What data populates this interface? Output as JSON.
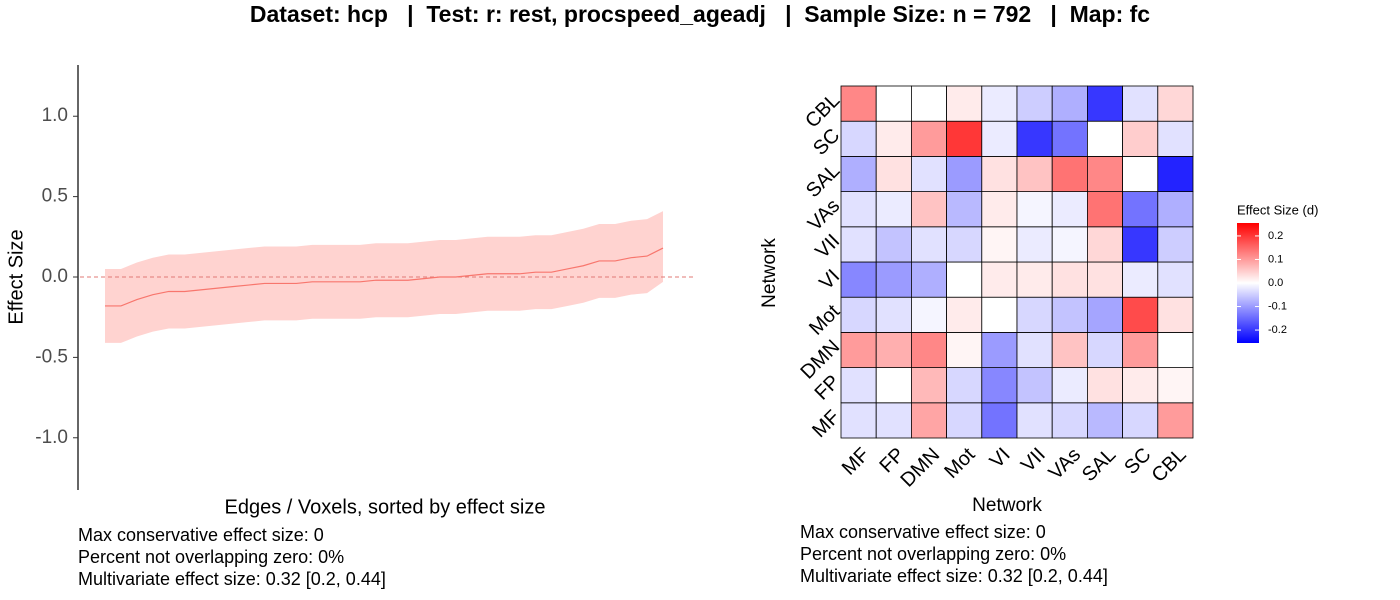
{
  "title": "Dataset: hcp   |  Test: r: rest, procspeed_ageadj   |  Sample Size: n = 792   |  Map: fc",
  "chart_data": [
    {
      "type": "ribbon-line",
      "y_label": "Effect Size",
      "x_label": "Edges / Voxels, sorted by effect size",
      "ylim": [
        -1.3,
        1.3
      ],
      "yticks": [
        {
          "value": 1.0,
          "label": "1.0"
        },
        0.5,
        {
          "value": 0.0,
          "label": "0.0"
        },
        -0.5,
        {
          "value": -1.0,
          "label": "-1.0"
        }
      ],
      "reference_line": 0,
      "line_color": "#f8766d",
      "ribbon_color": "#ffd3d0",
      "values": [
        -0.18,
        -0.18,
        -0.14,
        -0.11,
        -0.09,
        -0.09,
        -0.08,
        -0.07,
        -0.06,
        -0.05,
        -0.04,
        -0.04,
        -0.04,
        -0.03,
        -0.03,
        -0.03,
        -0.03,
        -0.02,
        -0.02,
        -0.02,
        -0.01,
        0.0,
        0.0,
        0.01,
        0.02,
        0.02,
        0.02,
        0.03,
        0.03,
        0.05,
        0.07,
        0.1,
        0.1,
        0.12,
        0.13,
        0.18
      ],
      "lower": [
        -0.41,
        -0.41,
        -0.37,
        -0.34,
        -0.32,
        -0.32,
        -0.31,
        -0.3,
        -0.29,
        -0.28,
        -0.27,
        -0.27,
        -0.27,
        -0.26,
        -0.26,
        -0.26,
        -0.26,
        -0.25,
        -0.25,
        -0.25,
        -0.24,
        -0.23,
        -0.23,
        -0.22,
        -0.21,
        -0.21,
        -0.21,
        -0.2,
        -0.2,
        -0.18,
        -0.16,
        -0.13,
        -0.13,
        -0.11,
        -0.1,
        -0.03
      ],
      "upper": [
        0.05,
        0.05,
        0.09,
        0.12,
        0.14,
        0.14,
        0.15,
        0.16,
        0.17,
        0.18,
        0.19,
        0.19,
        0.19,
        0.2,
        0.2,
        0.2,
        0.2,
        0.21,
        0.21,
        0.21,
        0.22,
        0.23,
        0.23,
        0.24,
        0.25,
        0.25,
        0.25,
        0.26,
        0.26,
        0.28,
        0.3,
        0.33,
        0.33,
        0.35,
        0.36,
        0.41
      ],
      "notes": [
        "Max conservative effect size: 0",
        "Percent not overlapping zero: 0%",
        "Multivariate effect size: 0.32 [0.2, 0.44]"
      ]
    },
    {
      "type": "heatmap",
      "x_label": "Network",
      "y_label": "Network",
      "x_categories": [
        "MF",
        "FP",
        "DMN",
        "Mot",
        "VI",
        "VII",
        "VAs",
        "SAL",
        "SC",
        "CBL"
      ],
      "y_categories": [
        "MF",
        "FP",
        "DMN",
        "Mot",
        "VI",
        "VII",
        "VAs",
        "SAL",
        "SC",
        "CBL"
      ],
      "z": [
        [
          -0.03,
          -0.03,
          0.09,
          -0.04,
          -0.14,
          -0.03,
          -0.04,
          -0.07,
          -0.04,
          0.1
        ],
        [
          -0.03,
          0.0,
          0.07,
          -0.04,
          -0.12,
          -0.06,
          -0.02,
          0.03,
          0.02,
          0.01
        ],
        [
          0.1,
          0.08,
          0.12,
          0.01,
          -0.1,
          -0.03,
          0.06,
          -0.04,
          0.1,
          0.0
        ],
        [
          -0.04,
          -0.03,
          -0.01,
          0.02,
          0.0,
          -0.04,
          -0.06,
          -0.09,
          0.18,
          0.03
        ],
        [
          -0.12,
          -0.1,
          -0.08,
          0.0,
          0.02,
          0.02,
          0.03,
          0.03,
          -0.02,
          -0.03
        ],
        [
          -0.03,
          -0.06,
          -0.03,
          -0.04,
          0.01,
          -0.02,
          -0.01,
          0.04,
          -0.2,
          -0.05
        ],
        [
          -0.03,
          -0.02,
          0.06,
          -0.07,
          0.02,
          -0.01,
          -0.02,
          0.14,
          -0.14,
          -0.08
        ],
        [
          -0.08,
          0.03,
          -0.03,
          -0.1,
          0.03,
          0.06,
          0.14,
          0.12,
          0.0,
          -0.22
        ],
        [
          -0.04,
          0.02,
          0.1,
          0.2,
          -0.02,
          -0.2,
          -0.14,
          0.0,
          0.05,
          -0.03
        ],
        [
          0.12,
          0.0,
          0.0,
          0.02,
          -0.02,
          -0.05,
          -0.08,
          -0.2,
          -0.03,
          0.04
        ]
      ],
      "legend_title": "Effect Size (d)",
      "zlim": [
        -0.255,
        0.255
      ],
      "legend_ticks": [
        0.2,
        0.1,
        {
          "value": 0.0,
          "label": "0.0"
        },
        -0.1,
        -0.2
      ],
      "low_color": "#0000ff",
      "mid_color": "#ffffff",
      "high_color": "#ff0000",
      "notes": [
        "Max conservative effect size: 0",
        "Percent not overlapping zero: 0%",
        "Multivariate effect size: 0.32 [0.2, 0.44]"
      ]
    }
  ]
}
